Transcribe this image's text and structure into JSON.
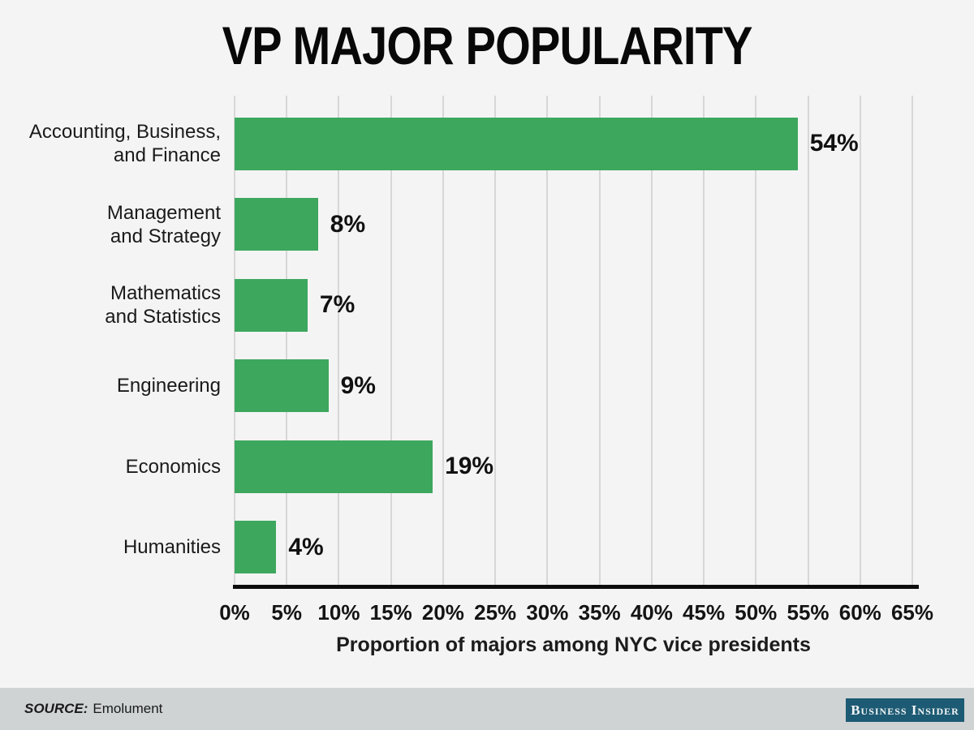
{
  "title": "VP MAJOR POPULARITY",
  "chart_data": {
    "type": "bar",
    "orientation": "horizontal",
    "title": "VP MAJOR POPULARITY",
    "categories": [
      "Accounting, Business, and Finance",
      "Management and Strategy",
      "Mathematics and Statistics",
      "Engineering",
      "Economics",
      "Humanities"
    ],
    "category_label_lines": [
      [
        "Accounting, Business,",
        "and Finance"
      ],
      [
        "Management",
        "and Strategy"
      ],
      [
        "Mathematics",
        "and Statistics"
      ],
      [
        "Engineering"
      ],
      [
        "Economics"
      ],
      [
        "Humanities"
      ]
    ],
    "values": [
      54,
      8,
      7,
      9,
      19,
      4
    ],
    "value_labels": [
      "54%",
      "8%",
      "7%",
      "9%",
      "19%",
      "4%"
    ],
    "xlabel": "Proportion of majors among NYC vice presidents",
    "x_tick_values": [
      0,
      5,
      10,
      15,
      20,
      25,
      30,
      35,
      40,
      45,
      50,
      55,
      60,
      65
    ],
    "x_tick_labels": [
      "0%",
      "5%",
      "10%",
      "15%",
      "20%",
      "25%",
      "30%",
      "35%",
      "40%",
      "45%",
      "50%",
      "55%",
      "60%",
      "65%"
    ],
    "xlim": [
      0,
      65
    ],
    "grid": true,
    "legend": "none",
    "bar_color": "#3da75e"
  },
  "footer": {
    "source_label": "SOURCE:",
    "source_value": "Emolument",
    "logo_text": "Business Insider",
    "logo_bg": "#1d5a73"
  }
}
